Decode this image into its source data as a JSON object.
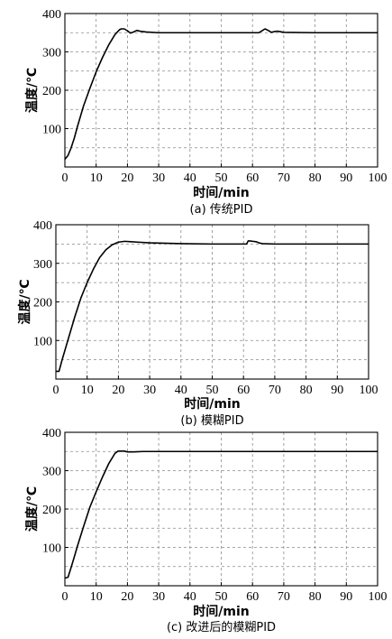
{
  "chart_data": [
    {
      "type": "line",
      "caption": "(a) 传统PID",
      "xlabel": "时间/min",
      "ylabel": "温度/℃",
      "xlim": [
        0,
        100
      ],
      "ylim": [
        0,
        400
      ],
      "xticks": [
        0,
        10,
        20,
        30,
        40,
        50,
        60,
        70,
        80,
        90,
        100
      ],
      "yticks": [
        100,
        200,
        300,
        400
      ],
      "grid": true,
      "series": [
        {
          "x": [
            0,
            1,
            2,
            3,
            4,
            6,
            8,
            10,
            12,
            14,
            16,
            17.5,
            18,
            19,
            20,
            21,
            22,
            23,
            24,
            26,
            30,
            40,
            50,
            60,
            62,
            63,
            64,
            65,
            66,
            67,
            68,
            70,
            80,
            90,
            100
          ],
          "y": [
            20,
            30,
            50,
            75,
            105,
            160,
            205,
            248,
            285,
            318,
            345,
            358,
            360,
            360,
            355,
            349,
            352,
            356,
            354,
            352,
            350,
            350,
            350,
            350,
            350,
            355,
            360,
            356,
            351,
            353,
            354,
            351,
            350,
            350,
            350
          ]
        }
      ]
    },
    {
      "type": "line",
      "caption": "(b)  模糊PID",
      "xlabel": "时间/min",
      "ylabel": "温度/℃",
      "xlim": [
        0,
        100
      ],
      "ylim": [
        0,
        400
      ],
      "xticks": [
        0,
        10,
        20,
        30,
        40,
        50,
        60,
        70,
        80,
        90,
        100
      ],
      "yticks": [
        100,
        200,
        300,
        400
      ],
      "grid": true,
      "series": [
        {
          "x": [
            0,
            1,
            2,
            4,
            6,
            8,
            10,
            12,
            14,
            16,
            18,
            20,
            22,
            24,
            26,
            30,
            40,
            50,
            60,
            61,
            61.5,
            62,
            63,
            64,
            65,
            66,
            70,
            80,
            90,
            100
          ],
          "y": [
            20,
            20,
            50,
            105,
            160,
            210,
            250,
            285,
            315,
            335,
            348,
            355,
            357,
            356,
            355,
            353,
            351,
            350,
            350,
            350,
            358,
            358,
            357,
            356,
            353,
            351,
            350,
            350,
            350,
            350
          ]
        }
      ]
    },
    {
      "type": "line",
      "caption": "(c) 改进后的模糊PID",
      "xlabel": "时间/min",
      "ylabel": "温度/℃",
      "xlim": [
        0,
        100
      ],
      "ylim": [
        0,
        400
      ],
      "xticks": [
        0,
        10,
        20,
        30,
        40,
        50,
        60,
        70,
        80,
        90,
        100
      ],
      "yticks": [
        100,
        200,
        300,
        400
      ],
      "grid": true,
      "series": [
        {
          "x": [
            0,
            1,
            2,
            3,
            4,
            6,
            8,
            10,
            12,
            14,
            16,
            17,
            18,
            19,
            20,
            22,
            25,
            30,
            40,
            50,
            60,
            70,
            80,
            90,
            100
          ],
          "y": [
            20,
            22,
            48,
            75,
            103,
            155,
            205,
            245,
            283,
            318,
            345,
            351,
            351,
            351,
            349,
            349,
            350,
            350,
            350,
            350,
            350,
            350,
            350,
            350,
            350
          ]
        }
      ]
    }
  ]
}
